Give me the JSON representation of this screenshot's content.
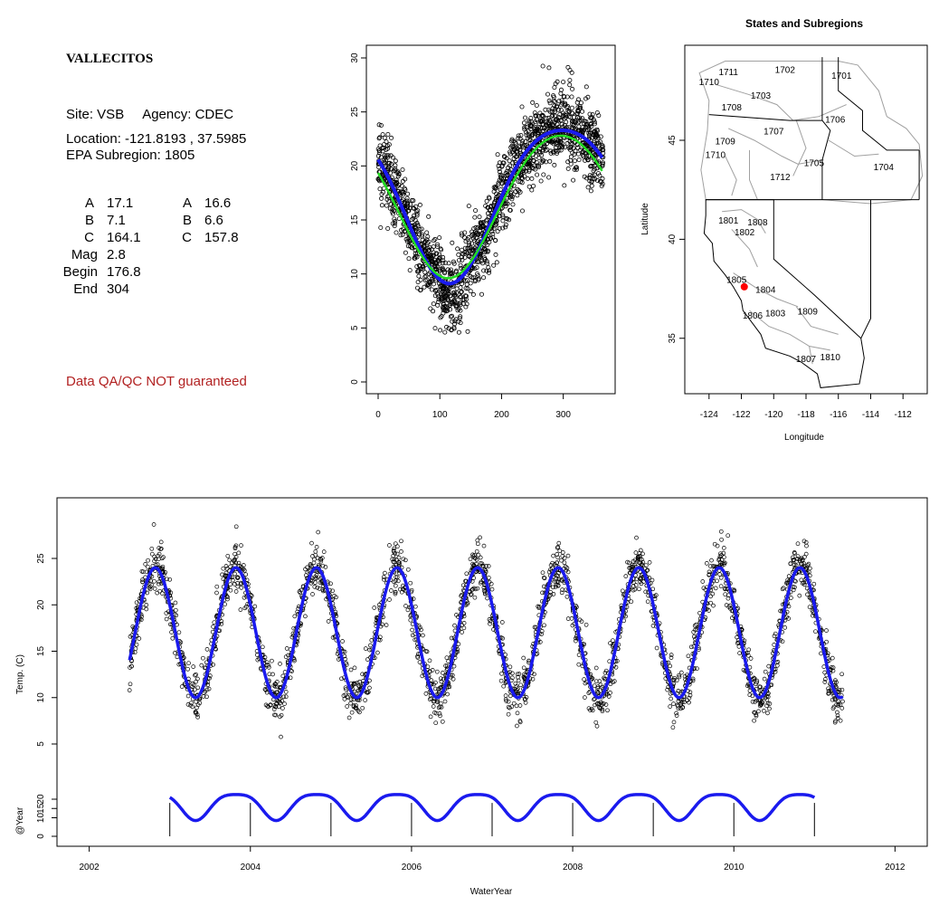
{
  "site": {
    "name": "VALLECITOS",
    "site_line": "Site: VSB     Agency: CDEC",
    "location_line": "Location: -121.8193 , 37.5985",
    "subregion_line": "EPA Subregion: 1805",
    "params": [
      {
        "label": "A",
        "v1": "17.1",
        "label2": "A",
        "v2": "16.6"
      },
      {
        "label": "B",
        "v1": "7.1",
        "label2": "B",
        "v2": "6.6"
      },
      {
        "label": "C",
        "v1": "164.1",
        "label2": "C",
        "v2": "157.8"
      },
      {
        "label": "Mag",
        "v1": "2.8",
        "label2": "",
        "v2": ""
      },
      {
        "label": "Begin",
        "v1": "176.8",
        "label2": "",
        "v2": ""
      },
      {
        "label": "End",
        "v1": "304",
        "label2": "",
        "v2": ""
      }
    ],
    "qa_note": "Data QA/QC NOT guaranteed"
  },
  "colors": {
    "fit_blue": "#1a1aee",
    "fit_green": "#22dd22",
    "marker_red": "#ff0000",
    "qa_text": "#b22222"
  },
  "chart_data": [
    {
      "type": "scatter",
      "panel": "day-of-year",
      "title": "",
      "xlabel": "",
      "ylabel": "",
      "xlim": [
        0,
        365
      ],
      "ylim": [
        0,
        30
      ],
      "xticks": [
        "0",
        "100",
        "200",
        "300"
      ],
      "yticks": [
        "0",
        "5",
        "10",
        "15",
        "20",
        "25",
        "30"
      ],
      "series": [
        {
          "fit": "blue",
          "A": 17.1,
          "B": 7.1,
          "C": 164.1
        },
        {
          "fit": "green",
          "A": 16.6,
          "B": 6.6,
          "C": 157.8
        }
      ]
    },
    {
      "type": "map",
      "title": "States and Subregions",
      "xlabel": "Longitude",
      "ylabel": "Latitude",
      "xlim": [
        -125.5,
        -110.5
      ],
      "ylim": [
        32.2,
        49.8
      ],
      "xticks": [
        "-124",
        "-122",
        "-120",
        "-118",
        "-116",
        "-114",
        "-112"
      ],
      "yticks": [
        "35",
        "40",
        "45"
      ],
      "site": {
        "lon": -121.82,
        "lat": 37.6
      },
      "regions": [
        {
          "label": "1702",
          "lon": -119.3,
          "lat": 48.4
        },
        {
          "label": "1701",
          "lon": -115.8,
          "lat": 48.1
        },
        {
          "label": "1711",
          "lon": -122.8,
          "lat": 48.3
        },
        {
          "label": "1710",
          "lon": -124.0,
          "lat": 47.8
        },
        {
          "label": "1703",
          "lon": -120.8,
          "lat": 47.1
        },
        {
          "label": "1708",
          "lon": -122.6,
          "lat": 46.5
        },
        {
          "label": "1706",
          "lon": -116.2,
          "lat": 45.9
        },
        {
          "label": "1707",
          "lon": -120.0,
          "lat": 45.3
        },
        {
          "label": "1709",
          "lon": -123.0,
          "lat": 44.8
        },
        {
          "label": "1710",
          "lon": -123.6,
          "lat": 44.1
        },
        {
          "label": "1705",
          "lon": -117.5,
          "lat": 43.7
        },
        {
          "label": "1704",
          "lon": -113.2,
          "lat": 43.5
        },
        {
          "label": "1712",
          "lon": -119.6,
          "lat": 43.0
        },
        {
          "label": "1801",
          "lon": -122.8,
          "lat": 40.8
        },
        {
          "label": "1808",
          "lon": -121.0,
          "lat": 40.7
        },
        {
          "label": "1802",
          "lon": -121.8,
          "lat": 40.2
        },
        {
          "label": "1805",
          "lon": -122.3,
          "lat": 37.8
        },
        {
          "label": "1804",
          "lon": -120.5,
          "lat": 37.3
        },
        {
          "label": "1806",
          "lon": -121.3,
          "lat": 36.0
        },
        {
          "label": "1803",
          "lon": -119.9,
          "lat": 36.1
        },
        {
          "label": "1809",
          "lon": -117.9,
          "lat": 36.2
        },
        {
          "label": "1810",
          "lon": -116.5,
          "lat": 33.9
        },
        {
          "label": "1807",
          "lon": -118.0,
          "lat": 33.8
        }
      ]
    },
    {
      "type": "line",
      "panel": "timeseries",
      "title": "",
      "xlabel": "WaterYear",
      "ylabel": "Temp. (C)",
      "ylabel2": "@Year",
      "xlim": [
        2001.6,
        2012.4
      ],
      "ylim": [
        0,
        30
      ],
      "xticks": [
        "2002",
        "2004",
        "2006",
        "2008",
        "2010",
        "2012"
      ],
      "yticks": [
        "5",
        "10",
        "15",
        "20",
        "25"
      ],
      "yticks2": [
        "0",
        "10",
        "15",
        "20"
      ],
      "start": 2002.5,
      "end": 2011.35,
      "water_years": [
        2003,
        2004,
        2005,
        2006,
        2007,
        2008,
        2009,
        2010,
        2011
      ]
    }
  ]
}
